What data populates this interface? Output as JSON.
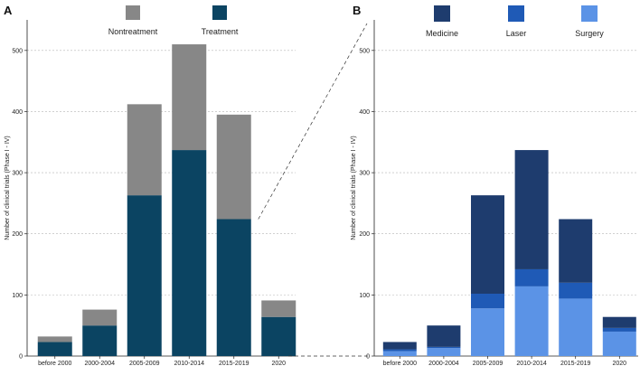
{
  "chart_data": [
    {
      "panel": "A",
      "type": "bar",
      "stacked": true,
      "categories": [
        "before 2000",
        "2000-2004",
        "2005-2009",
        "2010-2014",
        "2015-2019",
        "2020"
      ],
      "series": [
        {
          "name": "Treatment",
          "color": "#0b4462",
          "values": [
            23,
            50,
            263,
            337,
            224,
            64
          ]
        },
        {
          "name": "Nontreatment",
          "color": "#878787",
          "values": [
            9,
            26,
            149,
            173,
            171,
            27
          ]
        }
      ],
      "ylabel": "Number of clinical trials (Phase I - IV)",
      "ylim": [
        0,
        550
      ],
      "yticks": [
        0,
        100,
        200,
        300,
        400,
        500
      ],
      "grid": true,
      "legend_order": [
        "Nontreatment",
        "Treatment"
      ]
    },
    {
      "panel": "B",
      "type": "bar",
      "stacked": true,
      "categories": [
        "before 2000",
        "2000-2004",
        "2005-2009",
        "2010-2014",
        "2015-2019",
        "2020"
      ],
      "series": [
        {
          "name": "Surgery",
          "color": "#5b93e6",
          "values": [
            8,
            13,
            78,
            114,
            94,
            40
          ]
        },
        {
          "name": "Laser",
          "color": "#1f5ab6",
          "values": [
            3,
            2,
            24,
            28,
            26,
            6
          ]
        },
        {
          "name": "Medicine",
          "color": "#1e3c6e",
          "values": [
            12,
            35,
            161,
            195,
            104,
            18
          ]
        }
      ],
      "ylabel": "Number of clinical trials (Phase I - IV)",
      "ylim": [
        0,
        550
      ],
      "yticks": [
        0,
        100,
        200,
        300,
        400,
        500
      ],
      "grid": true,
      "legend_order": [
        "Medicine",
        "Laser",
        "Surgery"
      ]
    }
  ]
}
